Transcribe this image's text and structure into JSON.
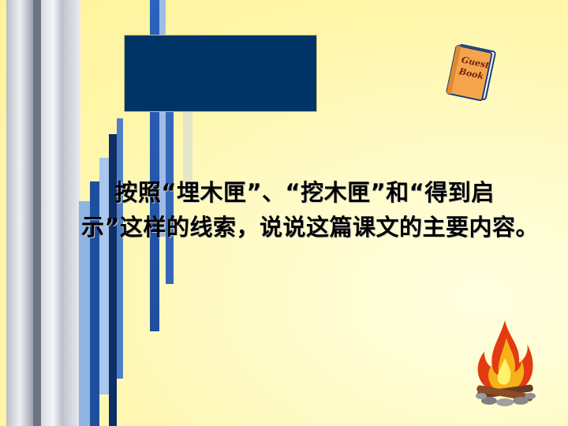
{
  "slide": {
    "title": "",
    "body_text": "    按照“埋木匣”、“挖木匣”和“得到启示”这样的线索，说说这篇课文的主要内容。",
    "colors": {
      "background": "#fff6a8",
      "title_box": "#003366",
      "strip_blue": "#1f4e9c",
      "strip_light_blue": "#6fa0d8"
    }
  },
  "decorations": {
    "guest_book": {
      "icon": "guest-book-icon",
      "label": "Guest Book"
    },
    "campfire": {
      "icon": "campfire-icon"
    }
  }
}
